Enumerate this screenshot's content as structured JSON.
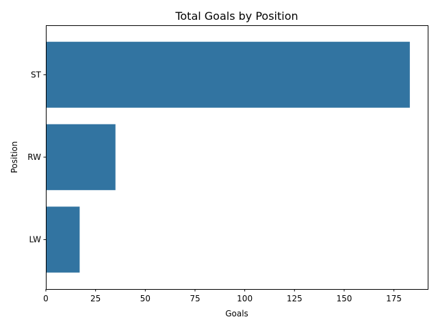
{
  "chart_data": {
    "type": "bar",
    "orientation": "horizontal",
    "title": "Total Goals by Position",
    "xlabel": "Goals",
    "ylabel": "Position",
    "categories": [
      "ST",
      "RW",
      "LW"
    ],
    "values": [
      183,
      35,
      17
    ],
    "xlim": [
      0,
      192
    ],
    "xticks": [
      0,
      25,
      50,
      75,
      100,
      125,
      150,
      175
    ],
    "grid": false,
    "legend": "none",
    "bar_color": "#3274a1"
  }
}
